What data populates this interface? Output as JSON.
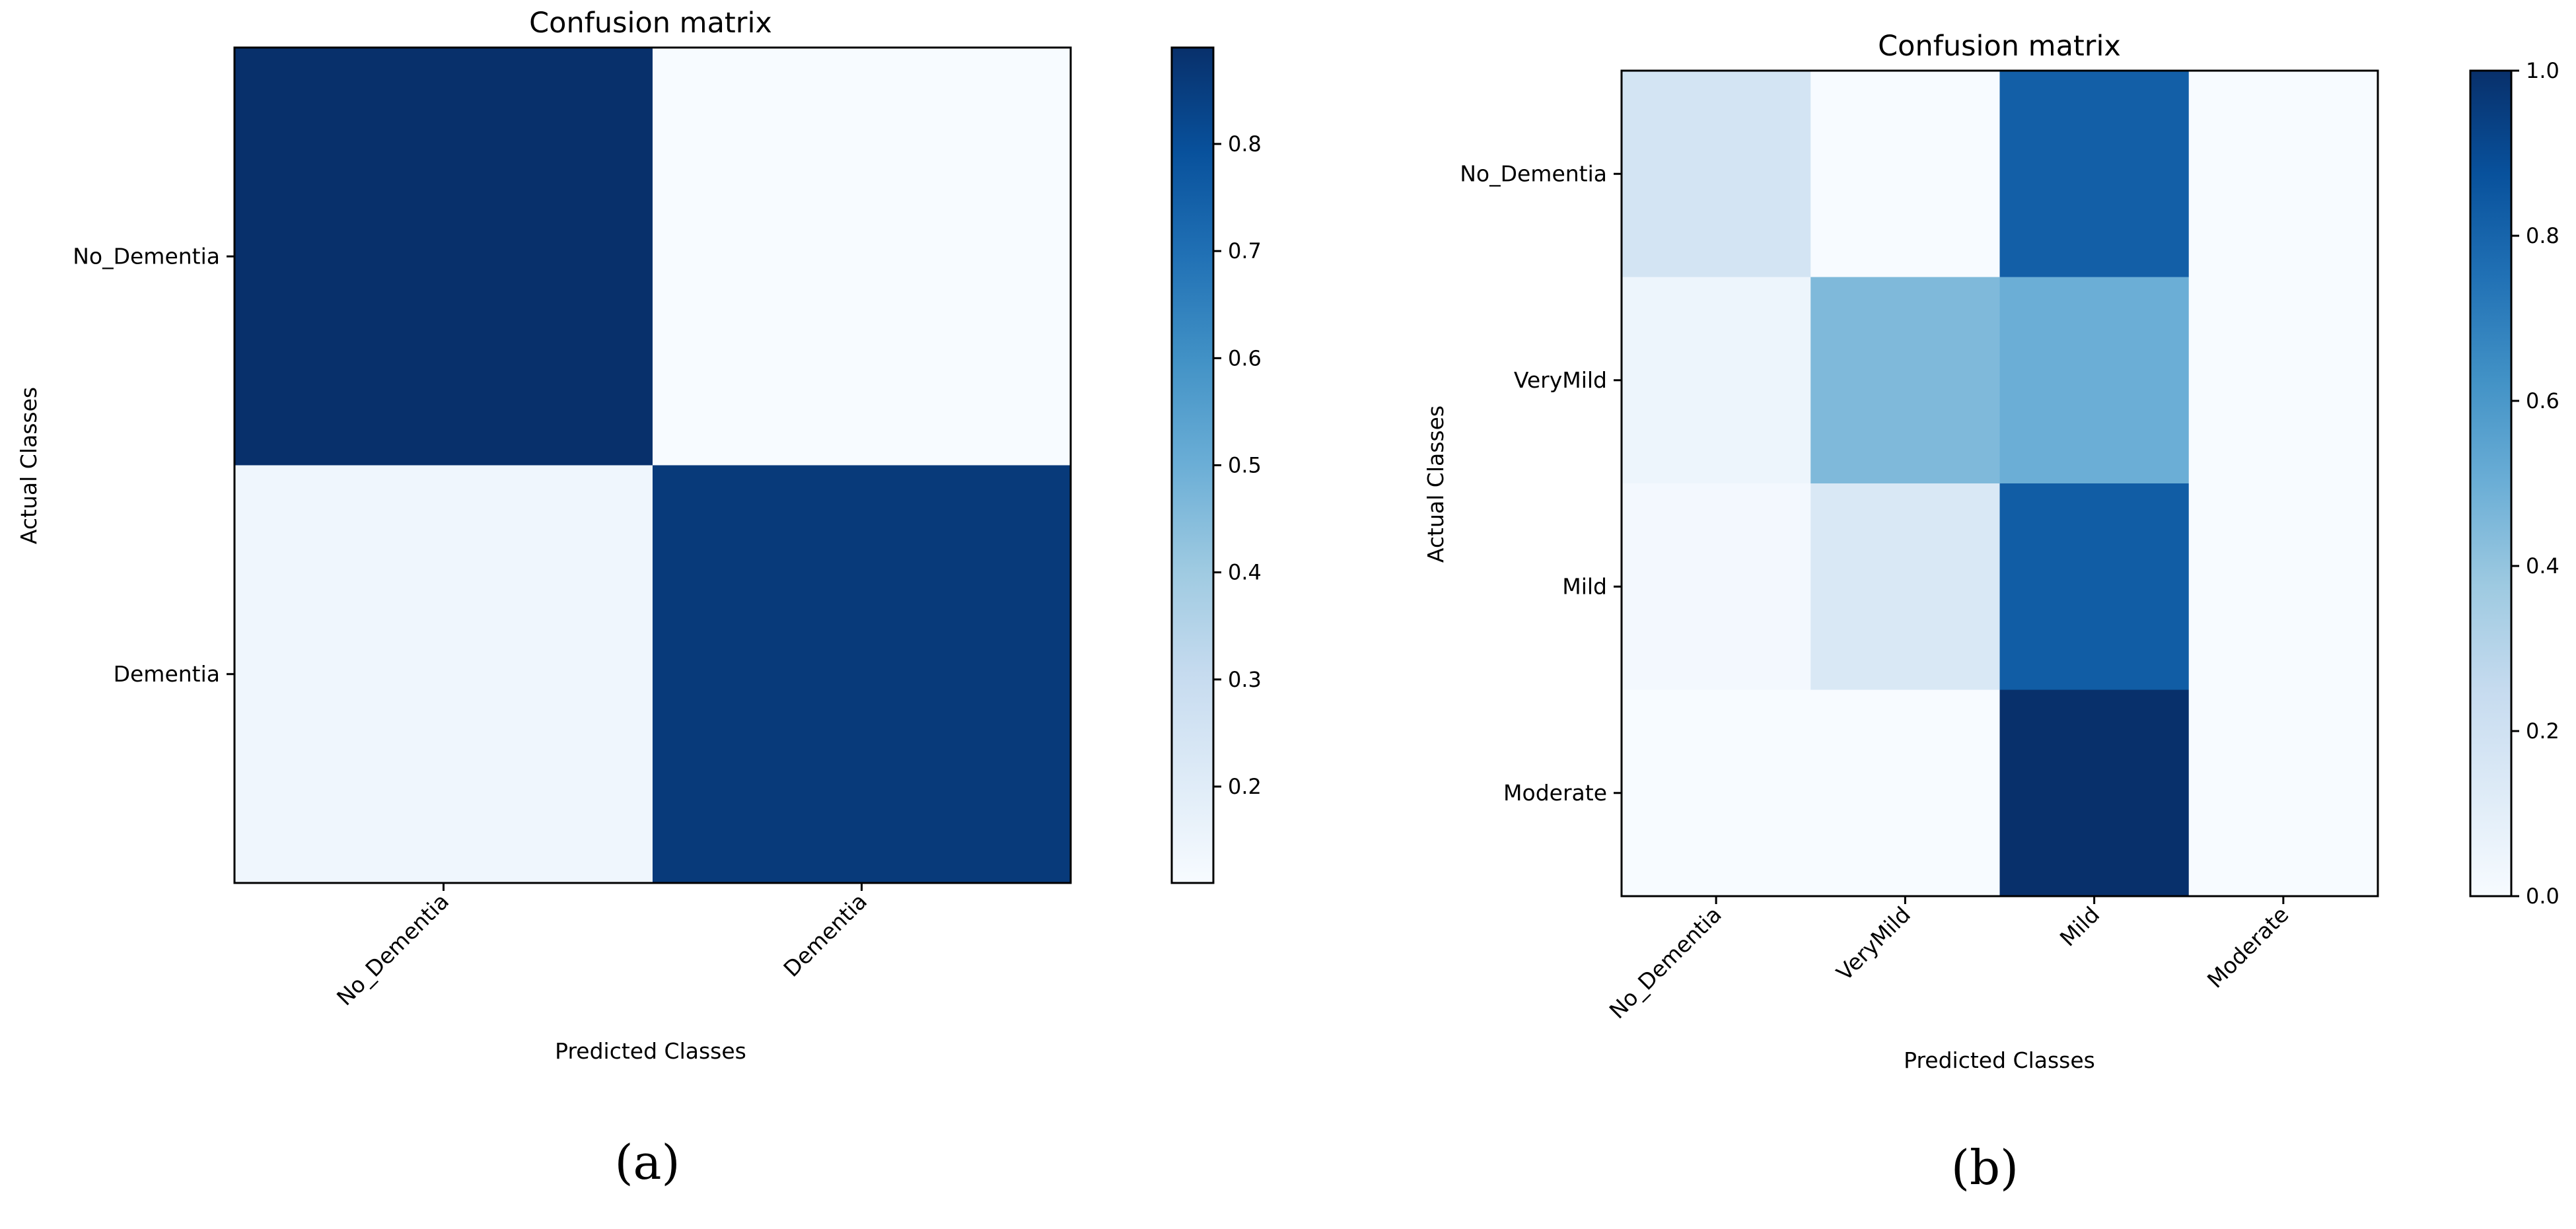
{
  "chart_data": [
    {
      "type": "heatmap",
      "title": "Confusion matrix",
      "xlabel": "Predicted Classes",
      "ylabel": "Actual Classes",
      "row_labels": [
        "No_Dementia",
        "Dementia"
      ],
      "col_labels": [
        "No_Dementia",
        "Dementia"
      ],
      "values": [
        [
          0.89,
          0.11
        ],
        [
          0.14,
          0.86
        ]
      ],
      "colorbar": {
        "vmin": 0.11,
        "vmax": 0.89,
        "ticks": [
          "0.2",
          "0.3",
          "0.4",
          "0.5",
          "0.6",
          "0.7",
          "0.8"
        ]
      },
      "panel_label": "(a)"
    },
    {
      "type": "heatmap",
      "title": "Confusion matrix",
      "xlabel": "Predicted Classes",
      "ylabel": "Actual Classes",
      "row_labels": [
        "No_Dementia",
        "VeryMild",
        "Mild",
        "Moderate"
      ],
      "col_labels": [
        "No_Dementia",
        "VeryMild",
        "Mild",
        "Moderate"
      ],
      "values": [
        [
          0.18,
          0.0,
          0.82,
          0.0
        ],
        [
          0.05,
          0.45,
          0.5,
          0.0
        ],
        [
          0.02,
          0.15,
          0.83,
          0.0
        ],
        [
          0.0,
          0.0,
          1.0,
          0.0
        ]
      ],
      "colorbar": {
        "vmin": 0.0,
        "vmax": 1.0,
        "ticks": [
          "0.0",
          "0.2",
          "0.4",
          "0.6",
          "0.8",
          "1.0"
        ]
      },
      "panel_label": "(b)"
    }
  ]
}
